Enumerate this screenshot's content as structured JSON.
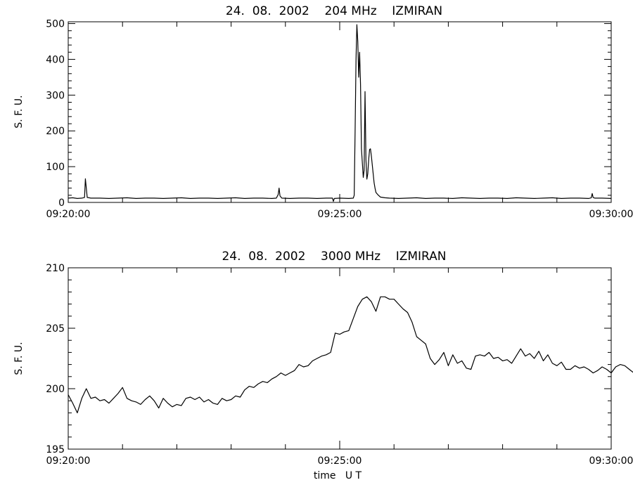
{
  "chart_data": [
    {
      "type": "line",
      "title": "24.  08.  2002    204 MHz    IZMIRAN",
      "ylabel": "S. F. U.",
      "xlabel": "",
      "x_ticks": [
        "09:20:00",
        "09:25:00",
        "09:30:00"
      ],
      "x_range": [
        0,
        600
      ],
      "ylim": [
        0,
        505
      ],
      "y_ticks": [
        0,
        100,
        200,
        300,
        400,
        500
      ],
      "grid": false,
      "series": [
        {
          "points": [
            [
              0,
              12
            ],
            [
              5,
              13
            ],
            [
              10,
              11
            ],
            [
              15,
              12
            ],
            [
              18,
              14
            ],
            [
              19,
              66
            ],
            [
              20,
              40
            ],
            [
              21,
              14
            ],
            [
              25,
              12
            ],
            [
              35,
              12
            ],
            [
              45,
              11
            ],
            [
              55,
              12
            ],
            [
              65,
              13
            ],
            [
              75,
              11
            ],
            [
              85,
              12
            ],
            [
              95,
              12
            ],
            [
              105,
              11
            ],
            [
              115,
              12
            ],
            [
              125,
              13
            ],
            [
              135,
              11
            ],
            [
              145,
              12
            ],
            [
              155,
              12
            ],
            [
              165,
              11
            ],
            [
              175,
              12
            ],
            [
              185,
              13
            ],
            [
              195,
              11
            ],
            [
              205,
              12
            ],
            [
              215,
              12
            ],
            [
              225,
              11
            ],
            [
              230,
              12
            ],
            [
              232,
              22
            ],
            [
              233,
              40
            ],
            [
              234,
              18
            ],
            [
              236,
              12
            ],
            [
              245,
              11
            ],
            [
              255,
              12
            ],
            [
              265,
              12
            ],
            [
              275,
              11
            ],
            [
              285,
              12
            ],
            [
              292,
              12
            ],
            [
              293,
              3
            ],
            [
              294,
              11
            ],
            [
              300,
              12
            ],
            [
              310,
              11
            ],
            [
              315,
              12
            ],
            [
              316,
              20
            ],
            [
              317,
              200
            ],
            [
              318,
              400
            ],
            [
              319,
              497
            ],
            [
              320,
              450
            ],
            [
              321,
              350
            ],
            [
              322,
              420
            ],
            [
              323,
              330
            ],
            [
              324,
              150
            ],
            [
              325,
              110
            ],
            [
              326,
              70
            ],
            [
              327,
              90
            ],
            [
              328,
              310
            ],
            [
              329,
              120
            ],
            [
              330,
              65
            ],
            [
              331,
              80
            ],
            [
              332,
              120
            ],
            [
              333,
              148
            ],
            [
              334,
              150
            ],
            [
              335,
              130
            ],
            [
              336,
              105
            ],
            [
              337,
              80
            ],
            [
              338,
              55
            ],
            [
              339,
              40
            ],
            [
              340,
              28
            ],
            [
              342,
              22
            ],
            [
              345,
              15
            ],
            [
              350,
              13
            ],
            [
              355,
              12
            ],
            [
              365,
              11
            ],
            [
              375,
              12
            ],
            [
              385,
              13
            ],
            [
              395,
              11
            ],
            [
              405,
              12
            ],
            [
              415,
              12
            ],
            [
              425,
              11
            ],
            [
              435,
              13
            ],
            [
              445,
              12
            ],
            [
              455,
              11
            ],
            [
              465,
              12
            ],
            [
              475,
              12
            ],
            [
              485,
              11
            ],
            [
              495,
              13
            ],
            [
              505,
              12
            ],
            [
              515,
              11
            ],
            [
              525,
              12
            ],
            [
              535,
              13
            ],
            [
              545,
              11
            ],
            [
              555,
              12
            ],
            [
              565,
              12
            ],
            [
              575,
              11
            ],
            [
              578,
              13
            ],
            [
              579,
              25
            ],
            [
              580,
              14
            ],
            [
              582,
              12
            ],
            [
              590,
              12
            ],
            [
              600,
              11
            ]
          ]
        }
      ]
    },
    {
      "type": "line",
      "title": "24.  08.  2002    3000 MHz    IZMIRAN",
      "ylabel": "S. F. U.",
      "xlabel": "time   U T",
      "x_ticks": [
        "09:20:00",
        "09:25:00",
        "09:30:00"
      ],
      "x_range": [
        0,
        600
      ],
      "ylim": [
        195,
        210
      ],
      "y_ticks": [
        195,
        200,
        205,
        210
      ],
      "grid": false,
      "series": [
        {
          "points": [
            [
              0,
              199.5
            ],
            [
              5,
              198.8
            ],
            [
              10,
              198.0
            ],
            [
              15,
              199.2
            ],
            [
              20,
              200.0
            ],
            [
              25,
              199.2
            ],
            [
              30,
              199.3
            ],
            [
              35,
              199.0
            ],
            [
              40,
              199.1
            ],
            [
              45,
              198.8
            ],
            [
              50,
              199.2
            ],
            [
              55,
              199.6
            ],
            [
              60,
              200.1
            ],
            [
              65,
              199.2
            ],
            [
              70,
              199.0
            ],
            [
              75,
              198.9
            ],
            [
              80,
              198.7
            ],
            [
              85,
              199.1
            ],
            [
              90,
              199.4
            ],
            [
              95,
              199.0
            ],
            [
              100,
              198.4
            ],
            [
              105,
              199.2
            ],
            [
              110,
              198.8
            ],
            [
              115,
              198.5
            ],
            [
              120,
              198.7
            ],
            [
              125,
              198.6
            ],
            [
              130,
              199.2
            ],
            [
              135,
              199.3
            ],
            [
              140,
              199.1
            ],
            [
              145,
              199.3
            ],
            [
              150,
              198.9
            ],
            [
              155,
              199.1
            ],
            [
              160,
              198.8
            ],
            [
              165,
              198.7
            ],
            [
              170,
              199.2
            ],
            [
              175,
              199.0
            ],
            [
              180,
              199.1
            ],
            [
              185,
              199.4
            ],
            [
              190,
              199.3
            ],
            [
              195,
              199.9
            ],
            [
              200,
              200.2
            ],
            [
              205,
              200.1
            ],
            [
              210,
              200.4
            ],
            [
              215,
              200.6
            ],
            [
              220,
              200.5
            ],
            [
              225,
              200.8
            ],
            [
              230,
              201.0
            ],
            [
              235,
              201.3
            ],
            [
              240,
              201.1
            ],
            [
              245,
              201.3
            ],
            [
              250,
              201.5
            ],
            [
              255,
              202.0
            ],
            [
              260,
              201.8
            ],
            [
              265,
              201.9
            ],
            [
              270,
              202.3
            ],
            [
              275,
              202.5
            ],
            [
              280,
              202.7
            ],
            [
              285,
              202.8
            ],
            [
              290,
              203.0
            ],
            [
              295,
              204.6
            ],
            [
              300,
              204.5
            ],
            [
              305,
              204.7
            ],
            [
              310,
              204.8
            ],
            [
              315,
              205.8
            ],
            [
              320,
              206.8
            ],
            [
              325,
              207.4
            ],
            [
              330,
              207.6
            ],
            [
              335,
              207.2
            ],
            [
              340,
              206.4
            ],
            [
              345,
              207.6
            ],
            [
              350,
              207.6
            ],
            [
              355,
              207.4
            ],
            [
              360,
              207.4
            ],
            [
              365,
              207.0
            ],
            [
              370,
              206.6
            ],
            [
              375,
              206.3
            ],
            [
              380,
              205.5
            ],
            [
              385,
              204.3
            ],
            [
              390,
              204.0
            ],
            [
              395,
              203.7
            ],
            [
              400,
              202.5
            ],
            [
              405,
              202.0
            ],
            [
              410,
              202.4
            ],
            [
              415,
              203.0
            ],
            [
              420,
              201.9
            ],
            [
              425,
              202.8
            ],
            [
              430,
              202.1
            ],
            [
              435,
              202.3
            ],
            [
              440,
              201.7
            ],
            [
              445,
              201.6
            ],
            [
              450,
              202.7
            ],
            [
              455,
              202.8
            ],
            [
              460,
              202.7
            ],
            [
              465,
              203.0
            ],
            [
              470,
              202.5
            ],
            [
              475,
              202.6
            ],
            [
              480,
              202.3
            ],
            [
              485,
              202.4
            ],
            [
              490,
              202.1
            ],
            [
              495,
              202.7
            ],
            [
              500,
              203.3
            ],
            [
              505,
              202.7
            ],
            [
              510,
              202.9
            ],
            [
              515,
              202.5
            ],
            [
              520,
              203.1
            ],
            [
              525,
              202.3
            ],
            [
              530,
              202.8
            ],
            [
              535,
              202.1
            ],
            [
              540,
              201.9
            ],
            [
              545,
              202.2
            ],
            [
              550,
              201.6
            ],
            [
              555,
              201.6
            ],
            [
              560,
              201.9
            ],
            [
              565,
              201.7
            ],
            [
              570,
              201.8
            ],
            [
              575,
              201.6
            ],
            [
              580,
              201.3
            ],
            [
              585,
              201.5
            ],
            [
              590,
              201.8
            ],
            [
              595,
              201.6
            ],
            [
              600,
              201.3
            ],
            [
              605,
              201.8
            ],
            [
              610,
              202.0
            ],
            [
              615,
              201.9
            ],
            [
              620,
              201.6
            ],
            [
              625,
              201.3
            ],
            [
              630,
              202.5
            ]
          ]
        }
      ]
    }
  ]
}
